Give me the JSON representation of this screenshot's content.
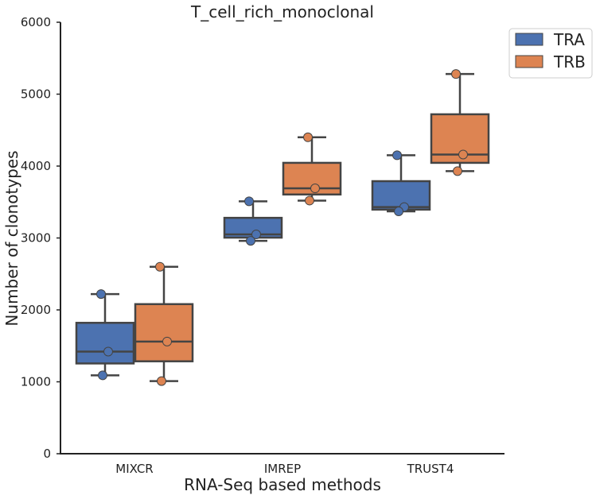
{
  "chart_data": {
    "type": "box",
    "title": "T_cell_rich_monoclonal",
    "xlabel": "RNA-Seq based methods",
    "ylabel": "Number of clonotypes",
    "categories": [
      "MIXCR",
      "IMREP",
      "TRUST4"
    ],
    "ylim": [
      0,
      6000
    ],
    "yticks": [
      0,
      1000,
      2000,
      3000,
      4000,
      5000,
      6000
    ],
    "grid": false,
    "legend_position": "top-right outside",
    "series": [
      {
        "name": "TRA",
        "color": "#4C72B0",
        "boxes": [
          {
            "category": "MIXCR",
            "whisker_low": 1090,
            "q1": 1255,
            "median": 1420,
            "q3": 1820,
            "whisker_high": 2220,
            "points": [
              2220,
              1420,
              1090
            ]
          },
          {
            "category": "IMREP",
            "whisker_low": 2960,
            "q1": 3005,
            "median": 3050,
            "q3": 3280,
            "whisker_high": 3510,
            "points": [
              3510,
              3050,
              2960
            ]
          },
          {
            "category": "TRUST4",
            "whisker_low": 3370,
            "q1": 3395,
            "median": 3430,
            "q3": 3790,
            "whisker_high": 4150,
            "points": [
              4150,
              3430,
              3370
            ]
          }
        ]
      },
      {
        "name": "TRB",
        "color": "#DD8452",
        "boxes": [
          {
            "category": "MIXCR",
            "whisker_low": 1010,
            "q1": 1285,
            "median": 1560,
            "q3": 2080,
            "whisker_high": 2600,
            "points": [
              2600,
              1560,
              1010
            ]
          },
          {
            "category": "IMREP",
            "whisker_low": 3520,
            "q1": 3605,
            "median": 3690,
            "q3": 4045,
            "whisker_high": 4400,
            "points": [
              4400,
              3690,
              3520
            ]
          },
          {
            "category": "TRUST4",
            "whisker_low": 3930,
            "q1": 4045,
            "median": 4160,
            "q3": 4720,
            "whisker_high": 5280,
            "points": [
              5280,
              4160,
              3930
            ]
          }
        ]
      }
    ]
  }
}
